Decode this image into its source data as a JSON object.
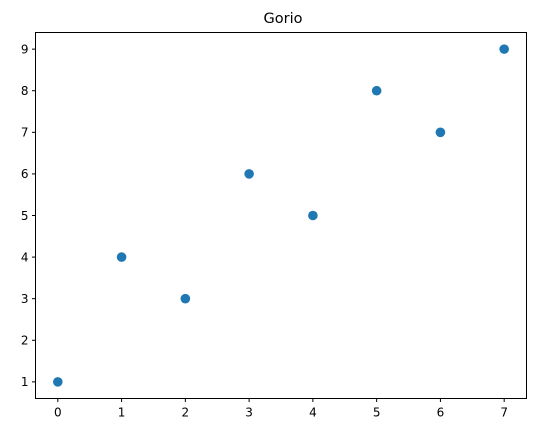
{
  "chart_data": {
    "type": "scatter",
    "title": "Gorio",
    "xlabel": "",
    "ylabel": "",
    "x": [
      0,
      1,
      2,
      3,
      4,
      5,
      6,
      7
    ],
    "y": [
      1,
      4,
      3,
      6,
      5,
      8,
      7,
      9
    ],
    "xlim": [
      -0.35,
      7.35
    ],
    "ylim": [
      0.6,
      9.4
    ],
    "xticks": [
      0,
      1,
      2,
      3,
      4,
      5,
      6,
      7
    ],
    "yticks": [
      1,
      2,
      3,
      4,
      5,
      6,
      7,
      8,
      9
    ],
    "xtick_labels": [
      "0",
      "1",
      "2",
      "3",
      "4",
      "5",
      "6",
      "7"
    ],
    "ytick_labels": [
      "1",
      "2",
      "3",
      "4",
      "5",
      "6",
      "7",
      "8",
      "9"
    ],
    "grid": false,
    "legend": "none",
    "marker_color": "#1f77b4"
  }
}
